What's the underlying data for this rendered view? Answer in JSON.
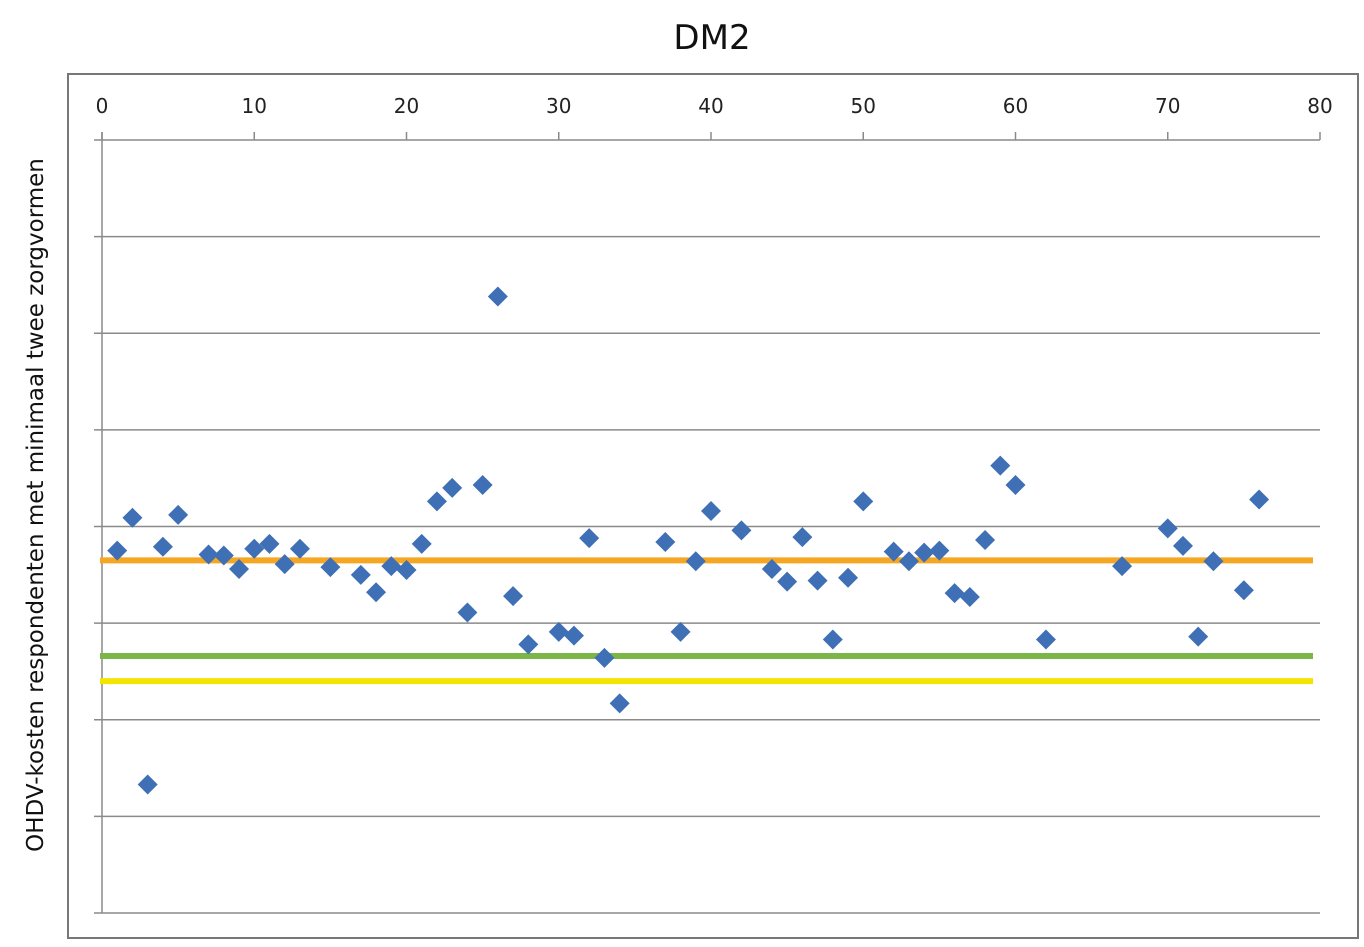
{
  "chart_data": {
    "type": "scatter",
    "title": "DM2",
    "xlabel": "",
    "ylabel": "OHDV-kosten respondenten met minimaal twee zorgvormen",
    "xlim": [
      0,
      80
    ],
    "x_ticks": [
      "0",
      "10",
      "20",
      "30",
      "40",
      "50",
      "60",
      "70",
      "80"
    ],
    "x_axis_position": "top",
    "ylim": [
      0,
      8
    ],
    "y_ticks_labeled": false,
    "grid": "horizontal",
    "legend": "none",
    "marker": "diamond",
    "marker_color": "#3f6fb5",
    "points": [
      [
        1,
        3.75
      ],
      [
        2,
        4.09
      ],
      [
        3,
        1.33
      ],
      [
        4,
        3.79
      ],
      [
        5,
        4.12
      ],
      [
        7,
        3.71
      ],
      [
        8,
        3.7
      ],
      [
        9,
        3.56
      ],
      [
        10,
        3.77
      ],
      [
        11,
        3.82
      ],
      [
        12,
        3.61
      ],
      [
        13,
        3.77
      ],
      [
        15,
        3.58
      ],
      [
        17,
        3.5
      ],
      [
        18,
        3.32
      ],
      [
        19,
        3.59
      ],
      [
        20,
        3.55
      ],
      [
        21,
        3.82
      ],
      [
        22,
        4.26
      ],
      [
        23,
        4.4
      ],
      [
        24,
        3.11
      ],
      [
        25,
        4.43
      ],
      [
        26,
        6.38
      ],
      [
        27,
        3.28
      ],
      [
        28,
        2.78
      ],
      [
        30,
        2.91
      ],
      [
        31,
        2.87
      ],
      [
        32,
        3.88
      ],
      [
        33,
        2.64
      ],
      [
        34,
        2.17
      ],
      [
        37,
        3.84
      ],
      [
        38,
        2.91
      ],
      [
        39,
        3.64
      ],
      [
        40,
        4.16
      ],
      [
        42,
        3.96
      ],
      [
        44,
        3.56
      ],
      [
        45,
        3.43
      ],
      [
        46,
        3.89
      ],
      [
        47,
        3.44
      ],
      [
        48,
        2.83
      ],
      [
        49,
        3.47
      ],
      [
        50,
        4.26
      ],
      [
        52,
        3.74
      ],
      [
        53,
        3.64
      ],
      [
        54,
        3.73
      ],
      [
        55,
        3.75
      ],
      [
        56,
        3.31
      ],
      [
        57,
        3.27
      ],
      [
        58,
        3.86
      ],
      [
        59,
        4.63
      ],
      [
        60,
        4.43
      ],
      [
        62,
        2.83
      ],
      [
        67,
        3.59
      ],
      [
        70,
        3.98
      ],
      [
        71,
        3.8
      ],
      [
        72,
        2.86
      ],
      [
        73,
        3.64
      ],
      [
        75,
        3.34
      ],
      [
        76,
        4.28
      ]
    ],
    "reference_lines": [
      {
        "y": 3.65,
        "color": "#f5a623"
      },
      {
        "y": 2.66,
        "color": "#7ab648"
      },
      {
        "y": 2.4,
        "color": "#f2e500"
      }
    ]
  }
}
